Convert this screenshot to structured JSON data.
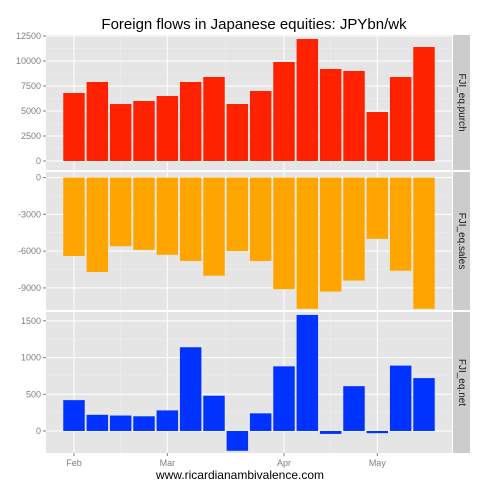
{
  "chart_data": {
    "type": "bar",
    "title": "Foreign flows in Japanese equities: JPYbn/wk",
    "caption": "www.ricardianambivalence.com",
    "x_labels": [
      "Feb",
      "Mar",
      "Apr",
      "May"
    ],
    "x_label_week_index": [
      0,
      4,
      9,
      13
    ],
    "weeks": 17,
    "grid": true,
    "facets": [
      {
        "name": "FJI_eq.purch",
        "color": "#ff2200",
        "ylim": [
          -900,
          12600
        ],
        "ticks": [
          0,
          2500,
          5000,
          7500,
          10000,
          12500
        ],
        "tick_labels": [
          "0",
          "2500",
          "5000",
          "7500",
          "10000",
          "12500"
        ],
        "values": [
          6800,
          7900,
          5700,
          6000,
          6500,
          7900,
          8400,
          5700,
          7000,
          9900,
          12200,
          9200,
          9000,
          4900,
          8400,
          11400,
          0
        ]
      },
      {
        "name": "FJI_eq.sales",
        "color": "#ffa500",
        "ylim": [
          -10800,
          450
        ],
        "ticks": [
          0,
          -3000,
          -6000,
          -9000
        ],
        "tick_labels": [
          "0",
          "-3000",
          "-6000",
          "-9000"
        ],
        "values": [
          -6400,
          -7700,
          -5600,
          -5900,
          -6300,
          -6800,
          -8000,
          -6000,
          -6800,
          -9100,
          -10700,
          -9300,
          -8400,
          -5000,
          -7600,
          -10700,
          0
        ]
      },
      {
        "name": "FJI_eq.net",
        "color": "#0033ff",
        "ylim": [
          -300,
          1620
        ],
        "ticks": [
          0,
          500,
          1000,
          1500
        ],
        "tick_labels": [
          "0",
          "500",
          "1000",
          "1500"
        ],
        "values": [
          420,
          220,
          210,
          200,
          280,
          1140,
          480,
          -270,
          240,
          880,
          1580,
          -40,
          610,
          -30,
          890,
          720,
          0
        ]
      }
    ]
  }
}
